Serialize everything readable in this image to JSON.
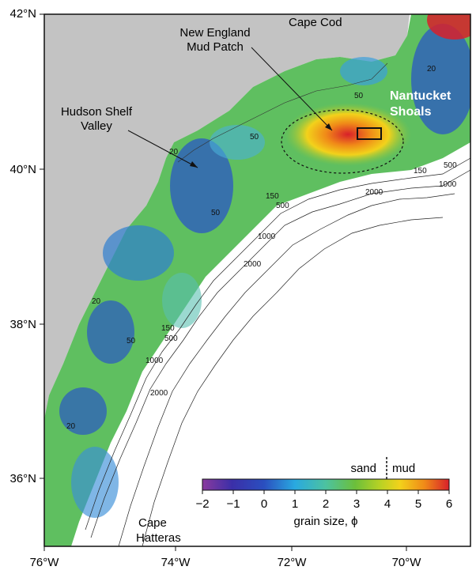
{
  "axes": {
    "lat_labels": [
      "42°N",
      "40°N",
      "38°N",
      "36°N"
    ],
    "lon_labels": [
      "76°W",
      "74°W",
      "72°W",
      "70°W"
    ]
  },
  "places": {
    "cape_cod": "Cape Cod",
    "mud_patch_line1": "New England",
    "mud_patch_line2": "Mud Patch",
    "hudson_line1": "Hudson Shelf",
    "hudson_line2": "Valley",
    "nantucket_line1": "Nantucket",
    "nantucket_line2": "Shoals",
    "hatteras_line1": "Cape",
    "hatteras_line2": "Hatteras"
  },
  "contours": {
    "m20": "20",
    "m50": "50",
    "m150": "150",
    "m500": "500",
    "m1000": "1000",
    "m2000": "2000"
  },
  "legend": {
    "title": "grain size, ϕ",
    "sand_label": "sand",
    "mud_label": "mud",
    "ticks": [
      "−2",
      "−1",
      "0",
      "1",
      "2",
      "3",
      "4",
      "5",
      "6"
    ],
    "colors": [
      "#8a3a9e",
      "#3b2fa8",
      "#2a4fbf",
      "#29a9e0",
      "#4cc2a0",
      "#6cbf3a",
      "#b8d224",
      "#f2d21b",
      "#f08a18",
      "#d8202a"
    ]
  },
  "colors": {
    "land": "#c3c3c3",
    "ocean": "#ffffff"
  }
}
